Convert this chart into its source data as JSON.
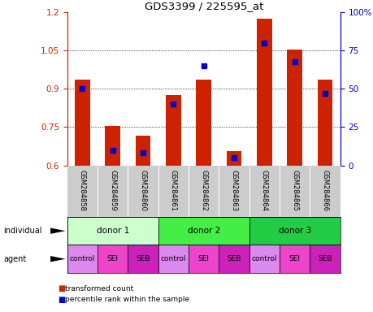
{
  "title": "GDS3399 / 225595_at",
  "samples": [
    "GSM284858",
    "GSM284859",
    "GSM284860",
    "GSM284861",
    "GSM284862",
    "GSM284863",
    "GSM284864",
    "GSM284865",
    "GSM284866"
  ],
  "transformed_count": [
    0.935,
    0.755,
    0.715,
    0.875,
    0.935,
    0.655,
    1.175,
    1.055,
    0.935
  ],
  "percentile_rank": [
    50,
    10,
    8,
    40,
    65,
    5,
    80,
    68,
    47
  ],
  "ylim_left": [
    0.6,
    1.2
  ],
  "ylim_right": [
    0,
    100
  ],
  "yticks_left": [
    0.6,
    0.75,
    0.9,
    1.05,
    1.2
  ],
  "yticks_right": [
    0,
    25,
    50,
    75,
    100
  ],
  "ytick_labels_right": [
    "0",
    "25",
    "50",
    "75",
    "100%"
  ],
  "bar_color": "#cc2200",
  "percentile_color": "#0000cc",
  "donors": [
    {
      "label": "donor 1",
      "span": [
        0,
        3
      ],
      "color": "#ccffcc"
    },
    {
      "label": "donor 2",
      "span": [
        3,
        6
      ],
      "color": "#44ee44"
    },
    {
      "label": "donor 3",
      "span": [
        6,
        9
      ],
      "color": "#22cc44"
    }
  ],
  "agents": [
    "control",
    "SEI",
    "SEB",
    "control",
    "SEI",
    "SEB",
    "control",
    "SEI",
    "SEB"
  ],
  "agent_colors": [
    "#dd88ee",
    "#ee44cc",
    "#cc22bb",
    "#dd88ee",
    "#ee44cc",
    "#cc22bb",
    "#dd88ee",
    "#ee44cc",
    "#cc22bb"
  ],
  "legend_items": [
    {
      "label": "transformed count",
      "color": "#cc2200"
    },
    {
      "label": "percentile rank within the sample",
      "color": "#0000cc"
    }
  ]
}
